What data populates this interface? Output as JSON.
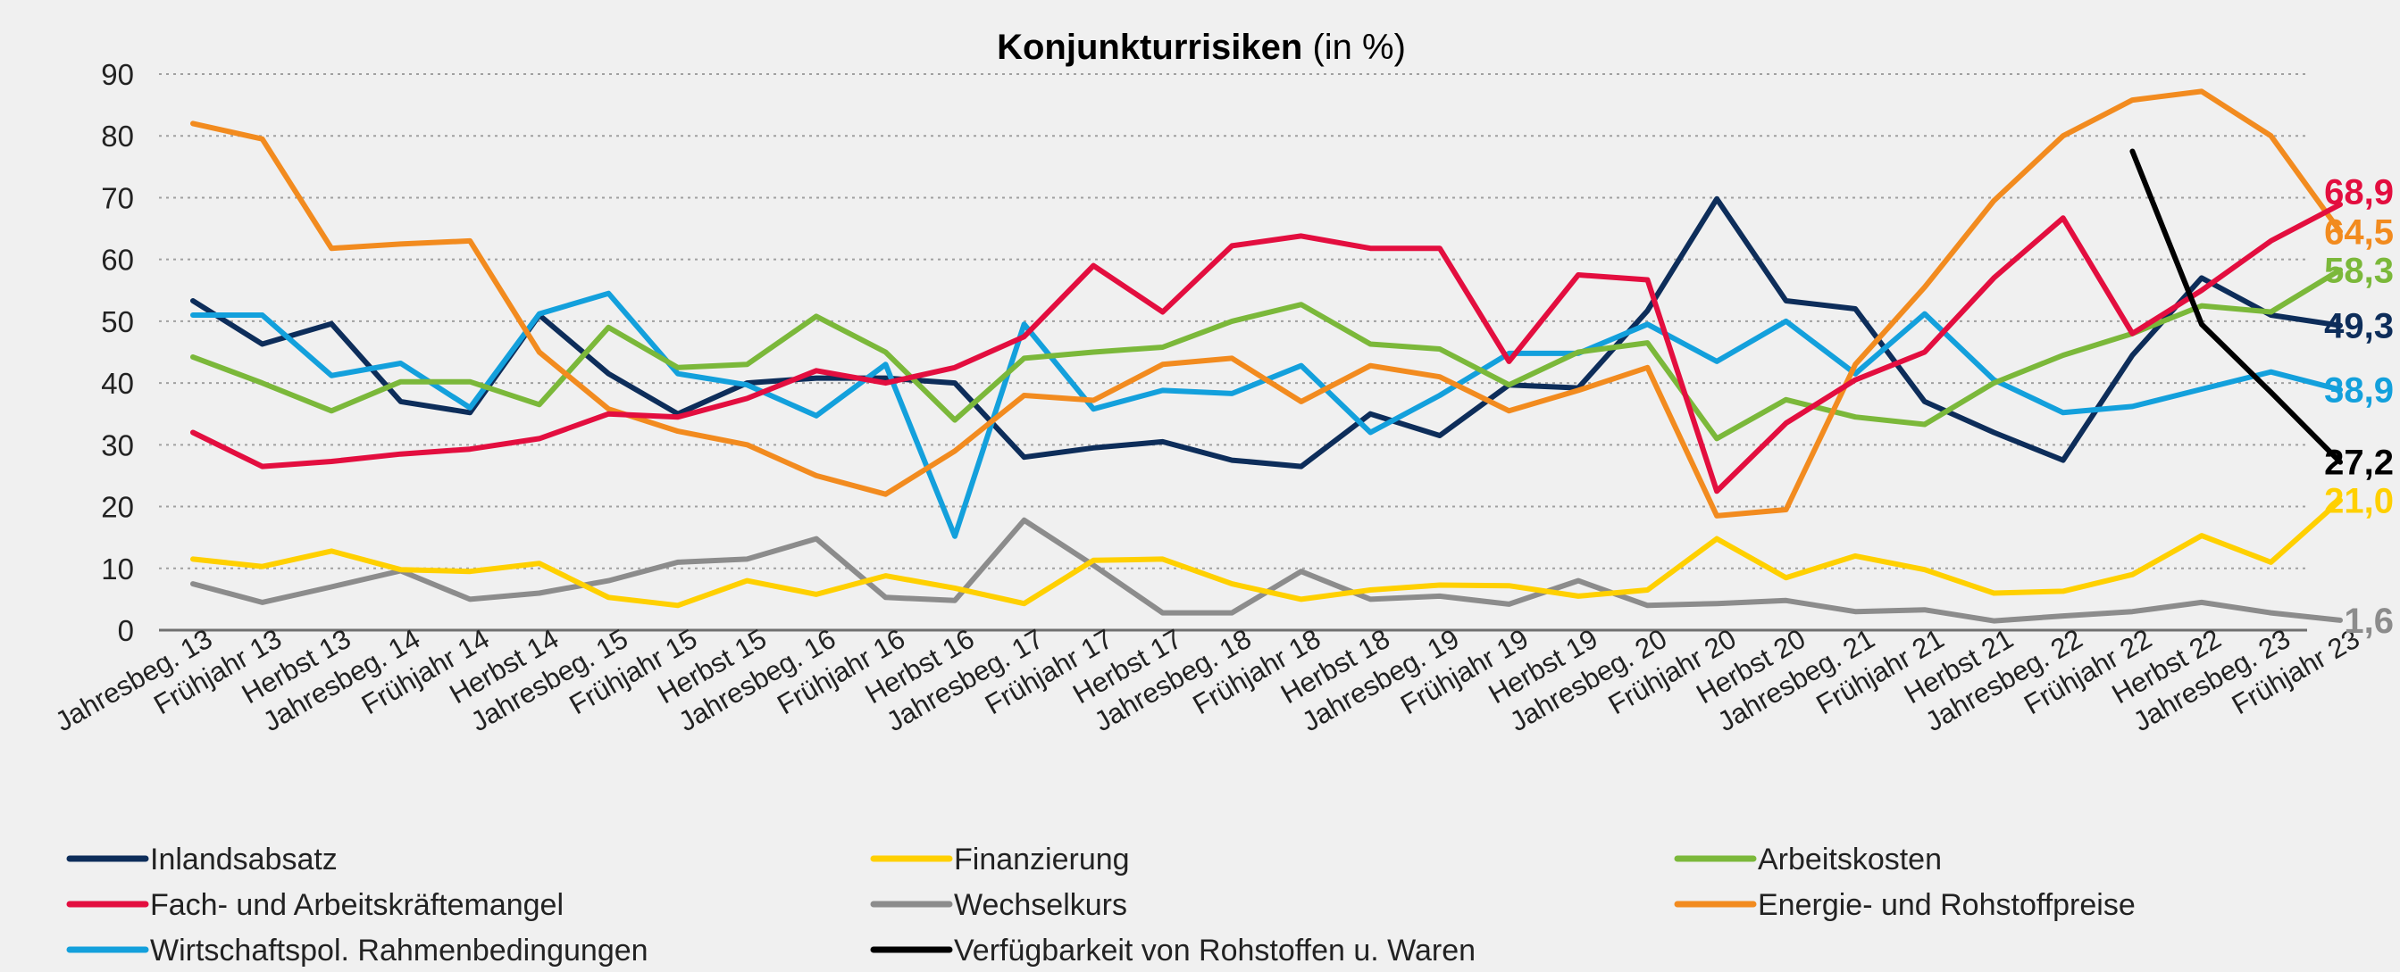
{
  "chart_data": {
    "type": "line",
    "title": "Konjunkturrisiken",
    "title_suffix": "(in %)",
    "xlabel": "",
    "ylabel": "",
    "ylim": [
      0,
      90
    ],
    "yticks": [
      0,
      10,
      20,
      30,
      40,
      50,
      60,
      70,
      80,
      90
    ],
    "grid": true,
    "legend_position": "bottom",
    "categories": [
      "Jahresbeg. 13",
      "Frühjahr 13",
      "Herbst 13",
      "Jahresbeg. 14",
      "Frühjahr 14",
      "Herbst 14",
      "Jahresbeg. 15",
      "Frühjahr 15",
      "Herbst 15",
      "Jahresbeg. 16",
      "Frühjahr 16",
      "Herbst 16",
      "Jahresbeg. 17",
      "Frühjahr 17",
      "Herbst 17",
      "Jahresbeg. 18",
      "Frühjahr 18",
      "Herbst 18",
      "Jahresbeg. 19",
      "Frühjahr 19",
      "Herbst 19",
      "Jahresbeg. 20",
      "Frühjahr 20",
      "Herbst 20",
      "Jahresbeg. 21",
      "Frühjahr 21",
      "Herbst 21",
      "Jahresbeg. 22",
      "Frühjahr 22",
      "Herbst 22",
      "Jahresbeg. 23",
      "Frühjahr 23"
    ],
    "series": [
      {
        "name": "Inlandsabsatz",
        "color": "#0d2d5a",
        "end_label": "49,3",
        "values": [
          53.3,
          46.3,
          49.6,
          37,
          35.2,
          51,
          41.5,
          35,
          40,
          40.8,
          40.8,
          40,
          28,
          29.5,
          30.5,
          27.5,
          26.5,
          35,
          31.5,
          39.7,
          39.2,
          51.7,
          69.8,
          53.3,
          52,
          37,
          32,
          27.5,
          44.5,
          57,
          51,
          49.3
        ]
      },
      {
        "name": "Fach- und Arbeitskräftemangel",
        "color": "#e30e3f",
        "end_label": "68,9",
        "values": [
          32,
          26.5,
          27.3,
          28.5,
          29.3,
          31,
          35,
          34.5,
          37.5,
          42,
          40,
          42.5,
          47.5,
          59,
          51.5,
          62.2,
          63.8,
          61.8,
          61.8,
          43.5,
          57.5,
          56.7,
          22.5,
          33.5,
          40.5,
          45,
          57,
          66.7,
          48,
          55,
          63,
          68.9
        ]
      },
      {
        "name": "Wirtschaftspol. Rahmenbedingungen",
        "color": "#13a0dc",
        "end_label": "38,9",
        "values": [
          51,
          51,
          41.2,
          43.2,
          36,
          51.2,
          54.5,
          41.5,
          39.7,
          34.7,
          43,
          15.2,
          49.5,
          35.8,
          38.8,
          38.3,
          42.8,
          32,
          38,
          44.8,
          44.8,
          49.5,
          43.5,
          50,
          41.5,
          51.2,
          40.5,
          35.2,
          36.2,
          39,
          41.8,
          38.9
        ]
      },
      {
        "name": "Finanzierung",
        "color": "#ffd000",
        "end_label": "21,0",
        "values": [
          11.5,
          10.3,
          12.8,
          9.8,
          9.5,
          10.8,
          5.3,
          4,
          8,
          5.8,
          8.8,
          6.8,
          4.3,
          11.3,
          11.5,
          7.5,
          5,
          6.5,
          7.3,
          7.2,
          5.5,
          6.5,
          14.8,
          8.5,
          12,
          9.8,
          6,
          6.3,
          9,
          15.3,
          11,
          21
        ]
      },
      {
        "name": "Wechselkurs",
        "color": "#8c8c8c",
        "end_label": "1,6",
        "values": [
          7.5,
          4.5,
          7,
          9.6,
          5,
          6,
          8,
          11,
          11.5,
          14.8,
          5.3,
          4.8,
          17.8,
          10.5,
          2.8,
          2.8,
          9.5,
          5,
          5.5,
          4.2,
          8,
          4,
          4.3,
          4.8,
          3,
          3.3,
          1.5,
          2.3,
          3,
          4.5,
          2.8,
          1.6
        ]
      },
      {
        "name": "Arbeitskosten",
        "color": "#7bb83a",
        "end_label": "58,3",
        "values": [
          44.2,
          40,
          35.5,
          40.2,
          40.2,
          36.5,
          49,
          42.5,
          43,
          50.8,
          45,
          34,
          44,
          45,
          45.8,
          50,
          52.7,
          46.3,
          45.5,
          39.7,
          45,
          46.5,
          31,
          37.3,
          34.5,
          33.3,
          40,
          44.5,
          48,
          52.5,
          51.5,
          58.3
        ]
      },
      {
        "name": "Energie- und Rohstoffpreise",
        "color": "#f28b1f",
        "end_label": "64,5",
        "values": [
          82,
          79.5,
          61.8,
          62.5,
          63,
          45,
          35.8,
          32.2,
          30,
          25,
          22,
          29,
          38,
          37.2,
          43,
          44,
          37,
          42.8,
          41,
          35.5,
          38.8,
          42.5,
          18.5,
          19.5,
          43,
          55.5,
          69.5,
          80,
          85.8,
          87.2,
          80,
          64.5
        ]
      },
      {
        "name": "Verfügbarkeit von Rohstoffen u. Waren",
        "color": "#000000",
        "end_label": "27,2",
        "values": [
          null,
          null,
          null,
          null,
          null,
          null,
          null,
          null,
          null,
          null,
          null,
          null,
          null,
          null,
          null,
          null,
          null,
          null,
          null,
          null,
          null,
          null,
          null,
          null,
          null,
          null,
          null,
          null,
          77.5,
          49.5,
          38.5,
          27.2
        ]
      }
    ]
  }
}
